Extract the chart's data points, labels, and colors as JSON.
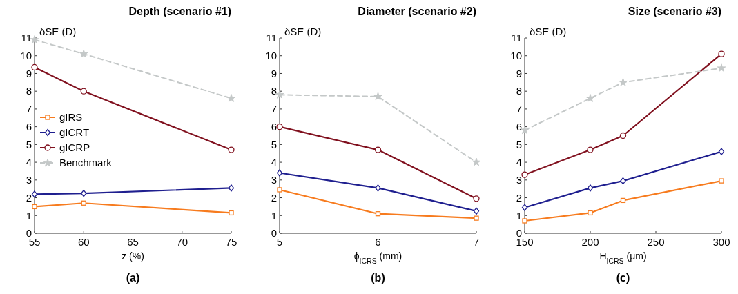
{
  "chart_data": [
    {
      "type": "line",
      "title": "Depth (scenario #1)",
      "xlabel": "z (%)",
      "ylabel": "δSE (D)",
      "annotations": [
        "(a)"
      ],
      "x": [
        55,
        60,
        75
      ],
      "xlim": [
        55,
        75
      ],
      "xticks": [
        55,
        60,
        65,
        70,
        75
      ],
      "ylim": [
        0,
        11
      ],
      "yticks": [
        0,
        1,
        2,
        3,
        4,
        5,
        6,
        7,
        8,
        9,
        10,
        11
      ],
      "legend": "left",
      "grid": false,
      "series": [
        {
          "name": "gIRS",
          "color": "#f77b1e",
          "marker": "square",
          "line_style": "solid",
          "values": [
            1.5,
            1.7,
            1.15
          ]
        },
        {
          "name": "gICRT",
          "color": "#1f1f8f",
          "marker": "diamond",
          "line_style": "solid",
          "values": [
            2.2,
            2.25,
            2.55
          ]
        },
        {
          "name": "gICRP",
          "color": "#80101e",
          "marker": "circle",
          "line_style": "solid",
          "values": [
            9.35,
            8.0,
            4.7
          ]
        },
        {
          "name": "Benchmark",
          "color": "#c4c8c8",
          "marker": "star",
          "line_style": "dashed",
          "values": [
            10.9,
            10.1,
            7.6
          ]
        }
      ]
    },
    {
      "type": "line",
      "title": "Diameter (scenario #2)",
      "xlabel": "ϕ$_{ICRS}$ (mm)",
      "ylabel": "δSE (D)",
      "annotations": [
        "(b)"
      ],
      "x": [
        5,
        6,
        7
      ],
      "xlim": [
        5,
        7
      ],
      "xticks": [
        5,
        6,
        7
      ],
      "ylim": [
        0,
        11
      ],
      "yticks": [
        0,
        1,
        2,
        3,
        4,
        5,
        6,
        7,
        8,
        9,
        10,
        11
      ],
      "legend": false,
      "grid": false,
      "series": [
        {
          "color": "#f77b1e",
          "marker": "square",
          "line_style": "solid",
          "values": [
            2.45,
            1.1,
            0.85
          ]
        },
        {
          "color": "#1f1f8f",
          "marker": "diamond",
          "line_style": "solid",
          "values": [
            3.4,
            2.55,
            1.25
          ]
        },
        {
          "color": "#80101e",
          "marker": "circle",
          "line_style": "solid",
          "values": [
            6.0,
            4.7,
            1.95
          ]
        },
        {
          "color": "#c4c8c8",
          "marker": "star",
          "line_style": "dashed",
          "values": [
            7.8,
            7.7,
            4.0
          ]
        }
      ]
    },
    {
      "type": "line",
      "title": "Size (scenario #3)",
      "xlabel": "H$_{ICRS}$ (μm)",
      "ylabel": "δSE (D)",
      "annotations": [
        "(c)"
      ],
      "x": [
        150,
        200,
        225,
        300
      ],
      "xlim": [
        150,
        300
      ],
      "xticks": [
        150,
        200,
        250,
        300
      ],
      "ylim": [
        0,
        11
      ],
      "yticks": [
        0,
        1,
        2,
        3,
        4,
        5,
        6,
        7,
        8,
        9,
        10,
        11
      ],
      "legend": false,
      "grid": false,
      "series": [
        {
          "color": "#f77b1e",
          "marker": "square",
          "line_style": "solid",
          "values": [
            0.7,
            1.15,
            1.85,
            2.95
          ]
        },
        {
          "color": "#1f1f8f",
          "marker": "diamond",
          "line_style": "solid",
          "values": [
            1.45,
            2.55,
            2.95,
            4.6
          ]
        },
        {
          "color": "#80101e",
          "marker": "circle",
          "line_style": "solid",
          "values": [
            3.3,
            4.7,
            5.5,
            10.1
          ]
        },
        {
          "color": "#c4c8c8",
          "marker": "star",
          "line_style": "dashed",
          "values": [
            5.8,
            7.6,
            8.5,
            9.3
          ]
        }
      ]
    }
  ]
}
